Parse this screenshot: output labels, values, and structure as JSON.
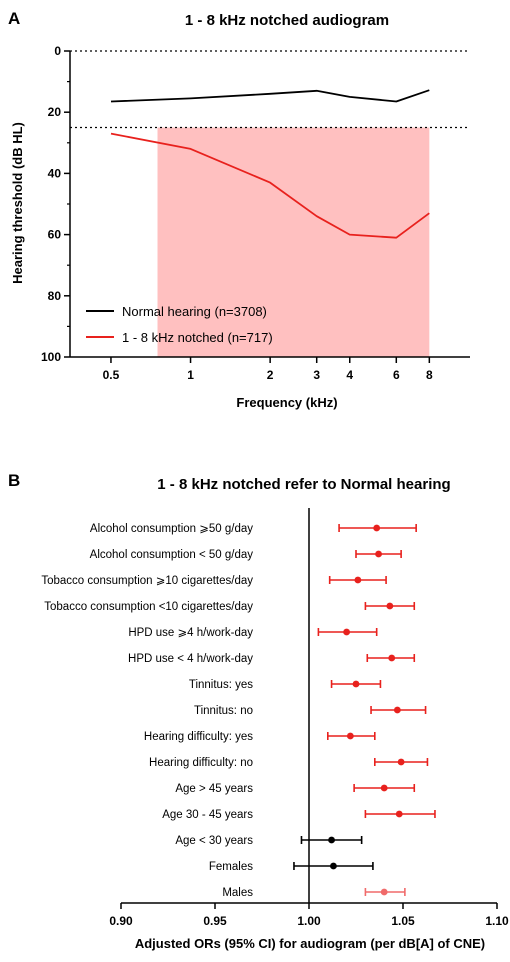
{
  "chart_data": [
    {
      "panel": "A",
      "type": "line",
      "title": "1 - 8 kHz notched audiogram",
      "xlabel": "Frequency (kHz)",
      "ylabel": "Hearing threshold (dB HL)",
      "x_scale": "log",
      "x": [
        0.5,
        1,
        2,
        3,
        4,
        6,
        8
      ],
      "x_tick_labels": [
        "0.5",
        "1",
        "2",
        "3",
        "4",
        "6",
        "8"
      ],
      "ylim": [
        0,
        100
      ],
      "y_inverted": true,
      "y_ticks": [
        0,
        20,
        40,
        60,
        80,
        100
      ],
      "y_tick_labels": [
        "0",
        "20",
        "40",
        "60",
        "80",
        "100"
      ],
      "reference_lines": [
        0,
        25
      ],
      "shaded_region": {
        "x": [
          0.75,
          8
        ],
        "y": [
          25,
          100
        ],
        "color": "#ffc0c0"
      },
      "series": [
        {
          "name": "Normal hearing (n=3708)",
          "color": "#000000",
          "values": [
            16.5,
            15.5,
            14,
            13,
            15,
            16.5,
            12.8
          ]
        },
        {
          "name": "1 - 8 kHz notched (n=717)",
          "color": "#e8211d",
          "values": [
            27,
            32,
            43,
            54,
            60,
            61,
            53
          ]
        }
      ],
      "legend_position": "bottom-left"
    },
    {
      "panel": "B",
      "type": "scatter",
      "subtype": "forest",
      "title": "1 - 8 kHz notched refer to Normal hearing",
      "xlabel": "Adjusted ORs (95% CI) for audiogram (per dB[A] of CNE)",
      "xlim": [
        0.9,
        1.1
      ],
      "x_ticks": [
        0.9,
        0.95,
        1.0,
        1.05,
        1.1
      ],
      "x_tick_labels": [
        "0.90",
        "0.95",
        "1.00",
        "1.05",
        "1.10"
      ],
      "reference_line": 1.0,
      "rows": [
        {
          "label": "Alcohol consumption ⩾50 g/day",
          "or": 1.036,
          "lo": 1.016,
          "hi": 1.057,
          "color": "#e8211d"
        },
        {
          "label": "Alcohol consumption < 50 g/day",
          "or": 1.037,
          "lo": 1.025,
          "hi": 1.049,
          "color": "#e8211d"
        },
        {
          "label": "Tobacco consumption ⩾10 cigarettes/day",
          "or": 1.026,
          "lo": 1.011,
          "hi": 1.041,
          "color": "#e8211d"
        },
        {
          "label": "Tobacco consumption <10 cigarettes/day",
          "or": 1.043,
          "lo": 1.03,
          "hi": 1.056,
          "color": "#e8211d"
        },
        {
          "label": "HPD use ⩾4 h/work-day",
          "or": 1.02,
          "lo": 1.005,
          "hi": 1.036,
          "color": "#e8211d"
        },
        {
          "label": "HPD use < 4 h/work-day",
          "or": 1.044,
          "lo": 1.031,
          "hi": 1.056,
          "color": "#e8211d"
        },
        {
          "label": "Tinnitus: yes",
          "or": 1.025,
          "lo": 1.012,
          "hi": 1.038,
          "color": "#e8211d"
        },
        {
          "label": "Tinnitus: no",
          "or": 1.047,
          "lo": 1.033,
          "hi": 1.062,
          "color": "#e8211d"
        },
        {
          "label": "Hearing difficulty: yes",
          "or": 1.022,
          "lo": 1.01,
          "hi": 1.035,
          "color": "#e8211d"
        },
        {
          "label": "Hearing difficulty: no",
          "or": 1.049,
          "lo": 1.035,
          "hi": 1.063,
          "color": "#e8211d"
        },
        {
          "label": "Age > 45 years",
          "or": 1.04,
          "lo": 1.024,
          "hi": 1.056,
          "color": "#e8211d"
        },
        {
          "label": "Age 30 - 45 years",
          "or": 1.048,
          "lo": 1.03,
          "hi": 1.067,
          "color": "#e8211d"
        },
        {
          "label": "Age < 30 years",
          "or": 1.012,
          "lo": 0.996,
          "hi": 1.028,
          "color": "#000000"
        },
        {
          "label": "Females",
          "or": 1.013,
          "lo": 0.992,
          "hi": 1.034,
          "color": "#000000"
        },
        {
          "label": "Males",
          "or": 1.04,
          "lo": 1.03,
          "hi": 1.051,
          "color": "#f06a6a"
        }
      ]
    }
  ]
}
